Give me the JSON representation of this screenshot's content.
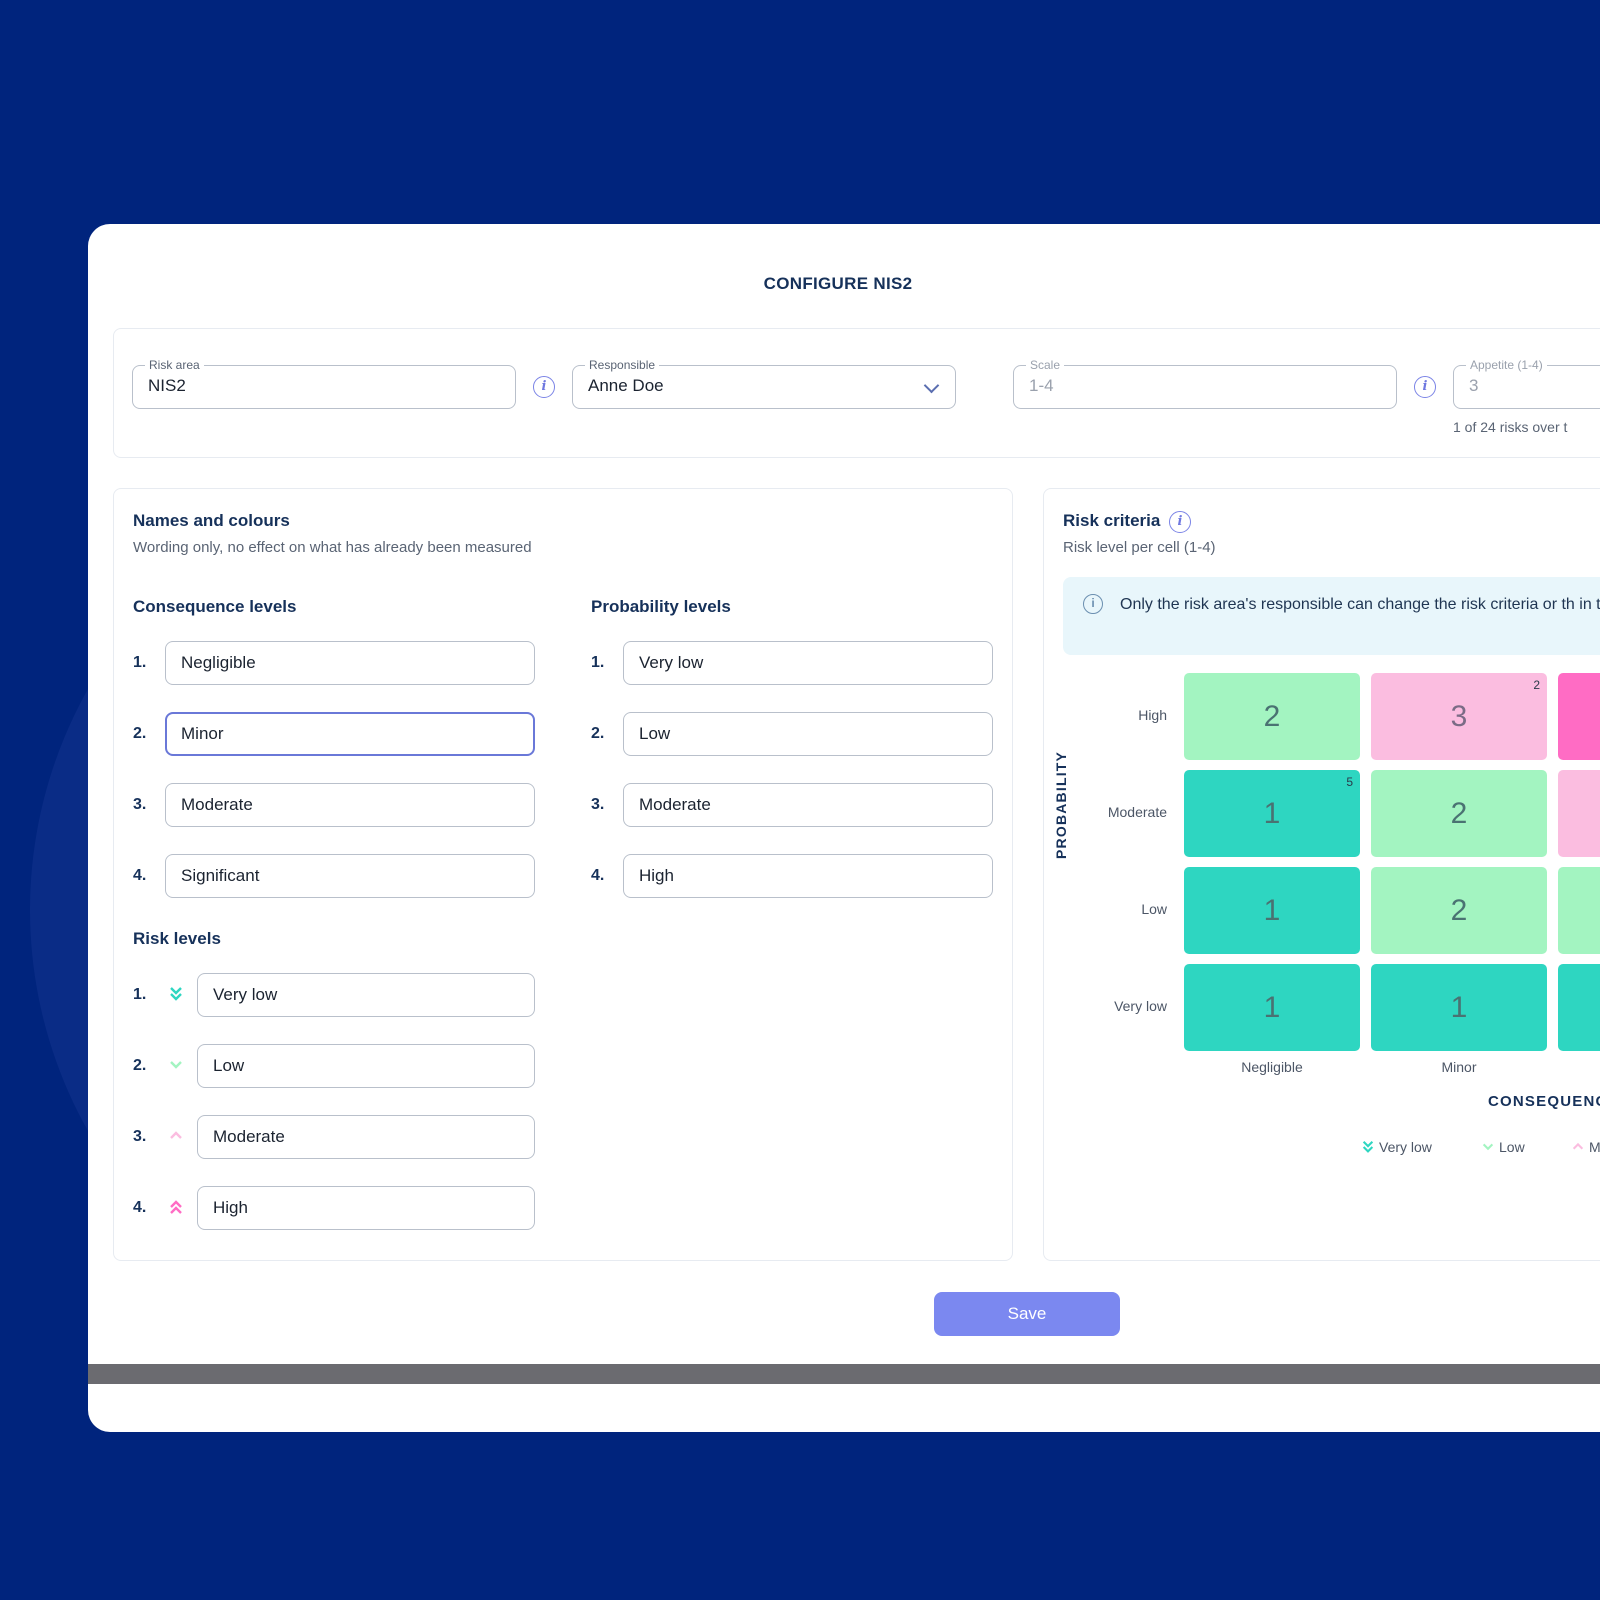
{
  "dialog": {
    "title": "CONFIGURE NIS2"
  },
  "settings": {
    "risk_area": {
      "label": "Risk area",
      "value": "NIS2"
    },
    "responsible": {
      "label": "Responsible",
      "value": "Anne Doe"
    },
    "scale": {
      "label": "Scale",
      "value": "1-4"
    },
    "appetite": {
      "label": "Appetite (1-4)",
      "value": "3",
      "hint": "1 of 24 risks over t"
    }
  },
  "names": {
    "title": "Names and colours",
    "subtitle": "Wording only, no effect on what has already been measured",
    "consequence_title": "Consequence levels",
    "consequence": [
      {
        "num": "1.",
        "value": "Negligible"
      },
      {
        "num": "2.",
        "value": "Minor"
      },
      {
        "num": "3.",
        "value": "Moderate"
      },
      {
        "num": "4.",
        "value": "Significant"
      }
    ],
    "probability_title": "Probability levels",
    "probability": [
      {
        "num": "1.",
        "value": "Very low"
      },
      {
        "num": "2.",
        "value": "Low"
      },
      {
        "num": "3.",
        "value": "Moderate"
      },
      {
        "num": "4.",
        "value": "High"
      }
    ],
    "risk_title": "Risk levels",
    "risk": [
      {
        "num": "1.",
        "value": "Very low",
        "icon": "double-chevron-down-icon"
      },
      {
        "num": "2.",
        "value": "Low",
        "icon": "chevron-down-icon"
      },
      {
        "num": "3.",
        "value": "Moderate",
        "icon": "chevron-up-icon"
      },
      {
        "num": "4.",
        "value": "High",
        "icon": "double-chevron-up-icon"
      }
    ]
  },
  "criteria": {
    "title": "Risk criteria",
    "subtitle": "Risk level per cell (1-4)",
    "notice": "Only the risk area's responsible can change the risk criteria or th in the area.",
    "rows": [
      "High",
      "Moderate",
      "Low",
      "Very low"
    ],
    "cols": [
      "Negligible",
      "Minor"
    ],
    "axis_y": "PROBABILITY",
    "axis_x": "CONSEQUENC",
    "cells": [
      [
        {
          "value": "2",
          "badge": ""
        },
        {
          "value": "3",
          "badge": "2"
        },
        {
          "value": "",
          "badge": ""
        }
      ],
      [
        {
          "value": "1",
          "badge": "5"
        },
        {
          "value": "2",
          "badge": ""
        },
        {
          "value": "",
          "badge": ""
        }
      ],
      [
        {
          "value": "1",
          "badge": ""
        },
        {
          "value": "2",
          "badge": ""
        },
        {
          "value": "",
          "badge": ""
        }
      ],
      [
        {
          "value": "1",
          "badge": ""
        },
        {
          "value": "1",
          "badge": ""
        },
        {
          "value": "",
          "badge": ""
        }
      ]
    ],
    "legend": [
      "Very low",
      "Low",
      "M"
    ]
  },
  "colors": {
    "level_1": "#2ed6c1",
    "level_2": "#a3f4c1",
    "level_3": "#fbbde0",
    "level_4": "#ff6cc4",
    "accent": "#7b88f0"
  },
  "actions": {
    "save_label": "Save"
  }
}
